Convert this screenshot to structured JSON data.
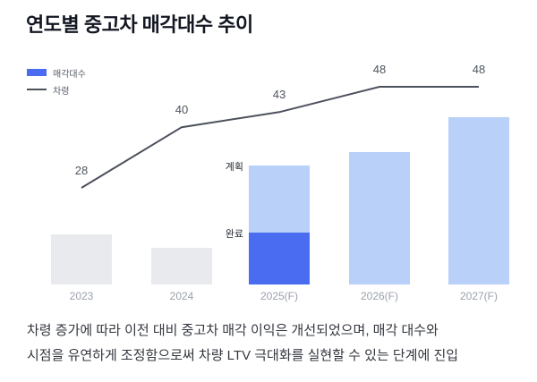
{
  "title": "연도별 중고차 매각대수 추이",
  "caption": {
    "lines": [
      "차령 증가에 따라 이전 대비 중고차 매각 이익은 개선되었으며, 매각 대수와",
      "시점을 유연하게 조정함으로써 차량 LTV 극대화를 실현할 수 있는 단계에 진입"
    ]
  },
  "chart_data": {
    "type": "combo",
    "title": "연도별 중고차 매각대수 추이",
    "categories": [
      "2023",
      "2024",
      "2025(F)",
      "2026(F)",
      "2027(F)"
    ],
    "grid": false,
    "legend": [
      "매각대수",
      "차령"
    ],
    "legend_position": "top-left",
    "series": [
      {
        "name": "매각대수",
        "type": "bar",
        "value_scale": "relative, % of tallest bar (no numeric axis shown)",
        "bars": [
          {
            "category": "2023",
            "segments": [
              {
                "value": 30,
                "color_key": "past"
              }
            ]
          },
          {
            "category": "2024",
            "segments": [
              {
                "value": 22,
                "color_key": "past"
              }
            ]
          },
          {
            "category": "2025(F)",
            "segments": [
              {
                "value": 31,
                "color_key": "completed",
                "label": "완료"
              },
              {
                "value": 40,
                "color_key": "planned",
                "label": "계획"
              }
            ]
          },
          {
            "category": "2026(F)",
            "segments": [
              {
                "value": 79,
                "color_key": "planned"
              }
            ]
          },
          {
            "category": "2027(F)",
            "segments": [
              {
                "value": 100,
                "color_key": "planned"
              }
            ]
          }
        ]
      },
      {
        "name": "차령",
        "type": "line",
        "values": [
          28,
          40,
          43,
          48,
          48
        ]
      }
    ],
    "colors": {
      "past": "#e8eaee",
      "planned": "#b9d0f8",
      "completed": "#4a6cf0",
      "line": "#4c515c",
      "legend_bar_swatch": "#4a6cf0"
    }
  }
}
